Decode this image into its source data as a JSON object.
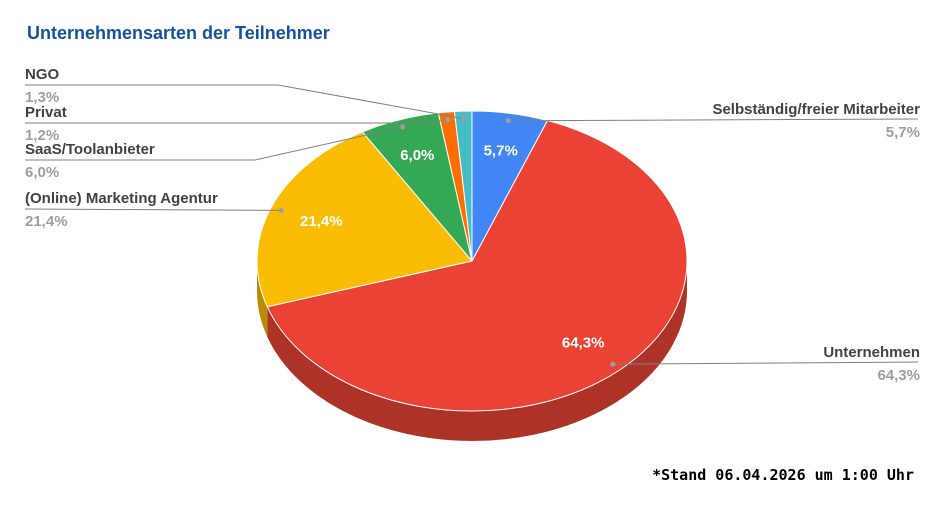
{
  "title": "Unternehmensarten der Teilnehmer",
  "footnote": "*Stand 06.04.2026 um 1:00 Uhr",
  "colors": {
    "title": "#14529e",
    "label_name": "#424242",
    "label_value": "#9e9e9e",
    "callout_line": "#808080",
    "callout_dot": "#9e9e9e",
    "inner_label": "#ffffff",
    "background": "#ffffff"
  },
  "chart_data": {
    "type": "pie",
    "style": "3d",
    "title": "Unternehmensarten der Teilnehmer",
    "unit": "%",
    "start_angle_deg": 0,
    "clockwise": true,
    "legend_position": "labeled-callouts",
    "total": 99.9,
    "slices": [
      {
        "label": "Selbständig/freier Mitarbeiter",
        "value": 5.7,
        "display": "5,7%",
        "color": "#4285f4",
        "callout_side": "right"
      },
      {
        "label": "Unternehmen",
        "value": 64.3,
        "display": "64,3%",
        "color": "#ea4335",
        "callout_side": "right"
      },
      {
        "label": "(Online) Marketing Agentur",
        "value": 21.4,
        "display": "21,4%",
        "color": "#fbbc04",
        "callout_side": "left"
      },
      {
        "label": "SaaS/Toolanbieter",
        "value": 6.0,
        "display": "6,0%",
        "color": "#34a853",
        "callout_side": "left"
      },
      {
        "label": "Privat",
        "value": 1.2,
        "display": "1,2%",
        "color": "#ff6d01",
        "callout_side": "left"
      },
      {
        "label": "NGO",
        "value": 1.3,
        "display": "1,3%",
        "color": "#46bdc6",
        "callout_side": "left"
      }
    ]
  }
}
